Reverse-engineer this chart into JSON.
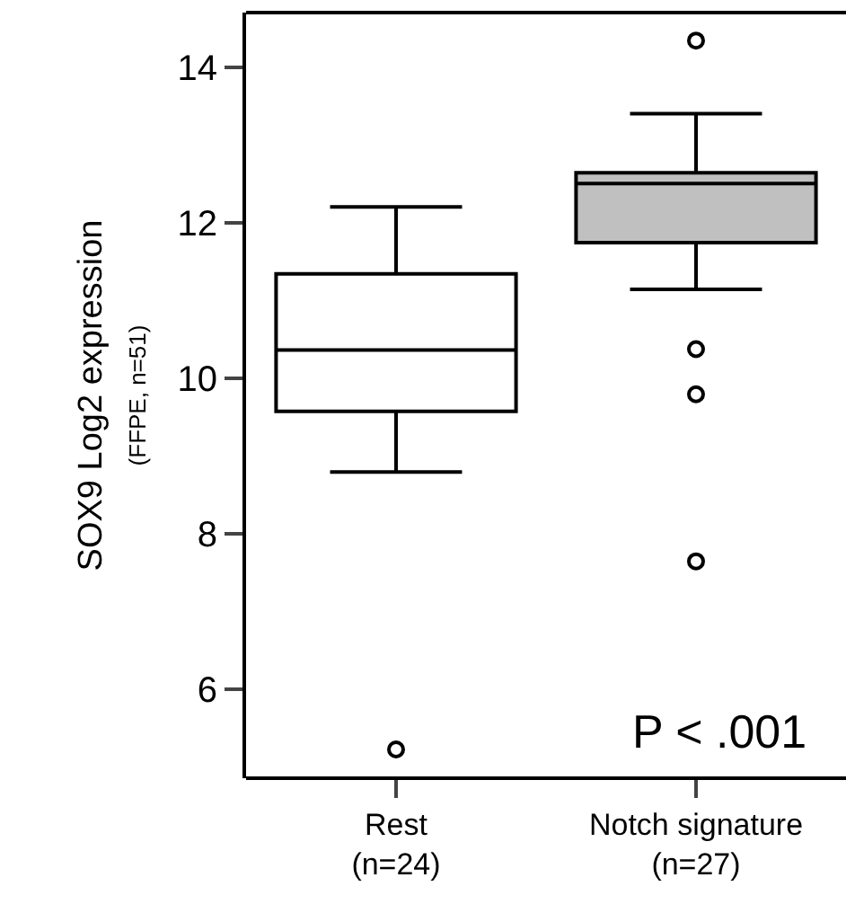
{
  "chart_data": {
    "type": "box",
    "ylabel": "SOX9 Log2 expression\n(FFPE, n=51)",
    "categories": [
      "Rest\n(n=24)",
      "Notch signature\n(n=27)"
    ],
    "colors": [
      "#ffffff",
      "#c0c0c0"
    ],
    "boxes": [
      {
        "low": 8.79,
        "q1": 9.57,
        "median": 10.36,
        "q3": 11.34,
        "high": 12.2,
        "outliers": [
          5.22
        ]
      },
      {
        "low": 11.14,
        "q1": 11.74,
        "median": 12.5,
        "q3": 12.64,
        "high": 13.4,
        "outliers": [
          14.34,
          10.37,
          9.79,
          7.64
        ]
      }
    ],
    "ylim": [
      4.85,
      14.7
    ],
    "yticks": [
      6,
      8,
      10,
      12,
      14
    ],
    "grid": false,
    "annotations": [
      "P < .001"
    ]
  }
}
